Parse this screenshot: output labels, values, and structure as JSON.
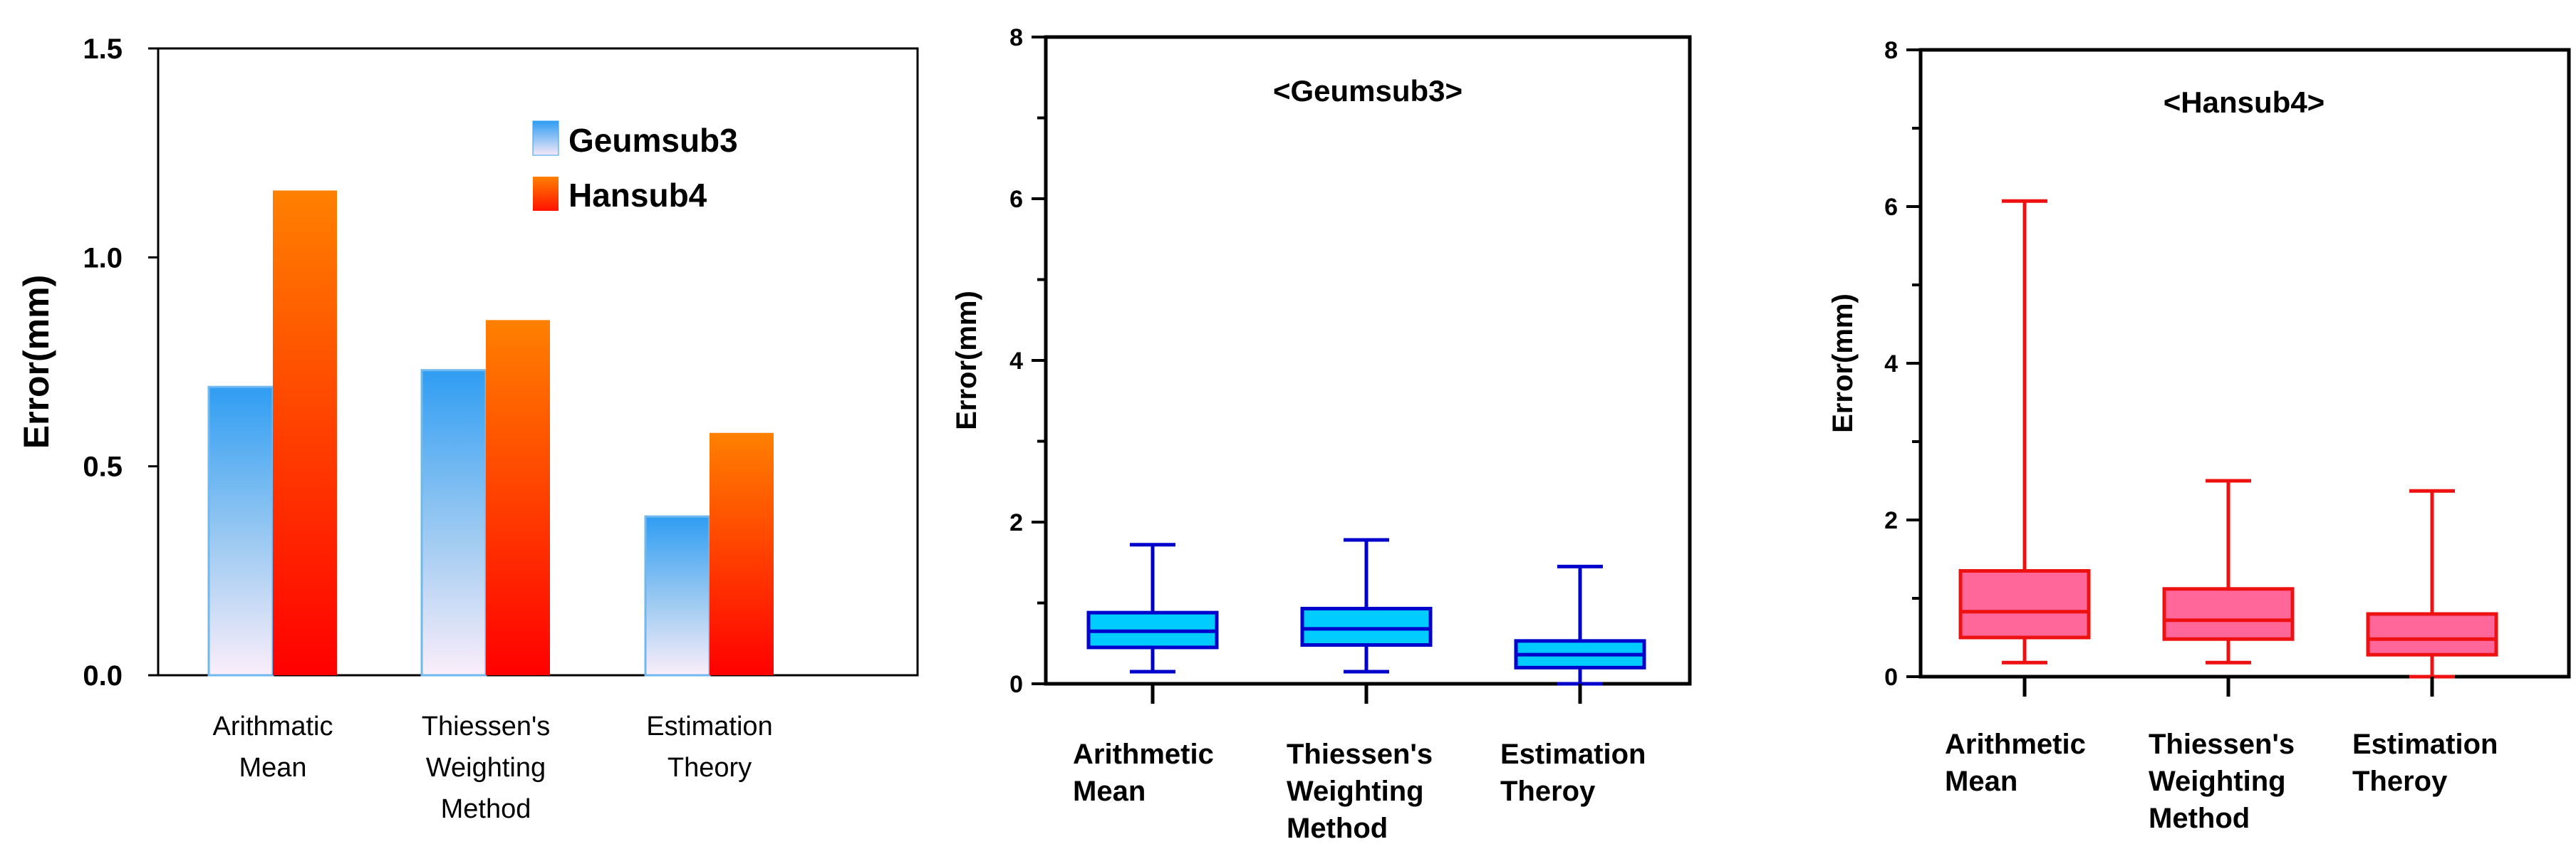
{
  "chart_data": [
    {
      "type": "bar",
      "title": "",
      "ylabel": "Error(mm)",
      "xlabel": "",
      "ylim": [
        0,
        1.5
      ],
      "yticks": [
        "0.0",
        "0.5",
        "1.0",
        "1.5"
      ],
      "categories": [
        [
          "Arithmatic",
          "Mean"
        ],
        [
          "Thiessen's",
          "Weighting",
          "Method"
        ],
        [
          "Estimation",
          "Theory"
        ]
      ],
      "series": [
        {
          "name": "Geumsub3",
          "values": [
            0.69,
            0.73,
            0.38
          ],
          "color": "#3aa3f0"
        },
        {
          "name": "Hansub4",
          "values": [
            1.16,
            0.85,
            0.58
          ],
          "color": "#ff3300"
        }
      ],
      "legend_position": "top-right",
      "grid": false
    },
    {
      "type": "box",
      "title": "<Geumsub3>",
      "ylabel": "Error(mm)",
      "ylim": [
        0,
        8
      ],
      "yticks": [
        "0",
        "2",
        "4",
        "6",
        "8"
      ],
      "categories": [
        [
          "Arithmetic",
          "Mean"
        ],
        [
          "Thiessen's",
          "Weighting",
          "Method"
        ],
        [
          "Estimation",
          "Theroy"
        ]
      ],
      "boxes": [
        {
          "min": 0.15,
          "q1": 0.45,
          "median": 0.65,
          "q3": 0.88,
          "max": 1.72
        },
        {
          "min": 0.15,
          "q1": 0.48,
          "median": 0.68,
          "q3": 0.93,
          "max": 1.78
        },
        {
          "min": 0.0,
          "q1": 0.2,
          "median": 0.36,
          "q3": 0.53,
          "max": 1.45
        }
      ],
      "fill": "#00ccff",
      "stroke": "#0000cc",
      "grid": false
    },
    {
      "type": "box",
      "title": "<Hansub4>",
      "ylabel": "Error(mm)",
      "ylim": [
        0,
        8
      ],
      "yticks": [
        "0",
        "2",
        "4",
        "6",
        "8"
      ],
      "categories": [
        [
          "Arithmetic",
          "Mean"
        ],
        [
          "Thiessen's",
          "Weighting",
          "Method"
        ],
        [
          "Estimation",
          "Theroy"
        ]
      ],
      "boxes": [
        {
          "min": 0.18,
          "q1": 0.5,
          "median": 0.83,
          "q3": 1.35,
          "max": 6.07
        },
        {
          "min": 0.18,
          "q1": 0.48,
          "median": 0.72,
          "q3": 1.12,
          "max": 2.5
        },
        {
          "min": 0.0,
          "q1": 0.28,
          "median": 0.48,
          "q3": 0.8,
          "max": 2.37
        }
      ],
      "fill": "#ff6699",
      "stroke": "#ee1111",
      "grid": false
    }
  ]
}
